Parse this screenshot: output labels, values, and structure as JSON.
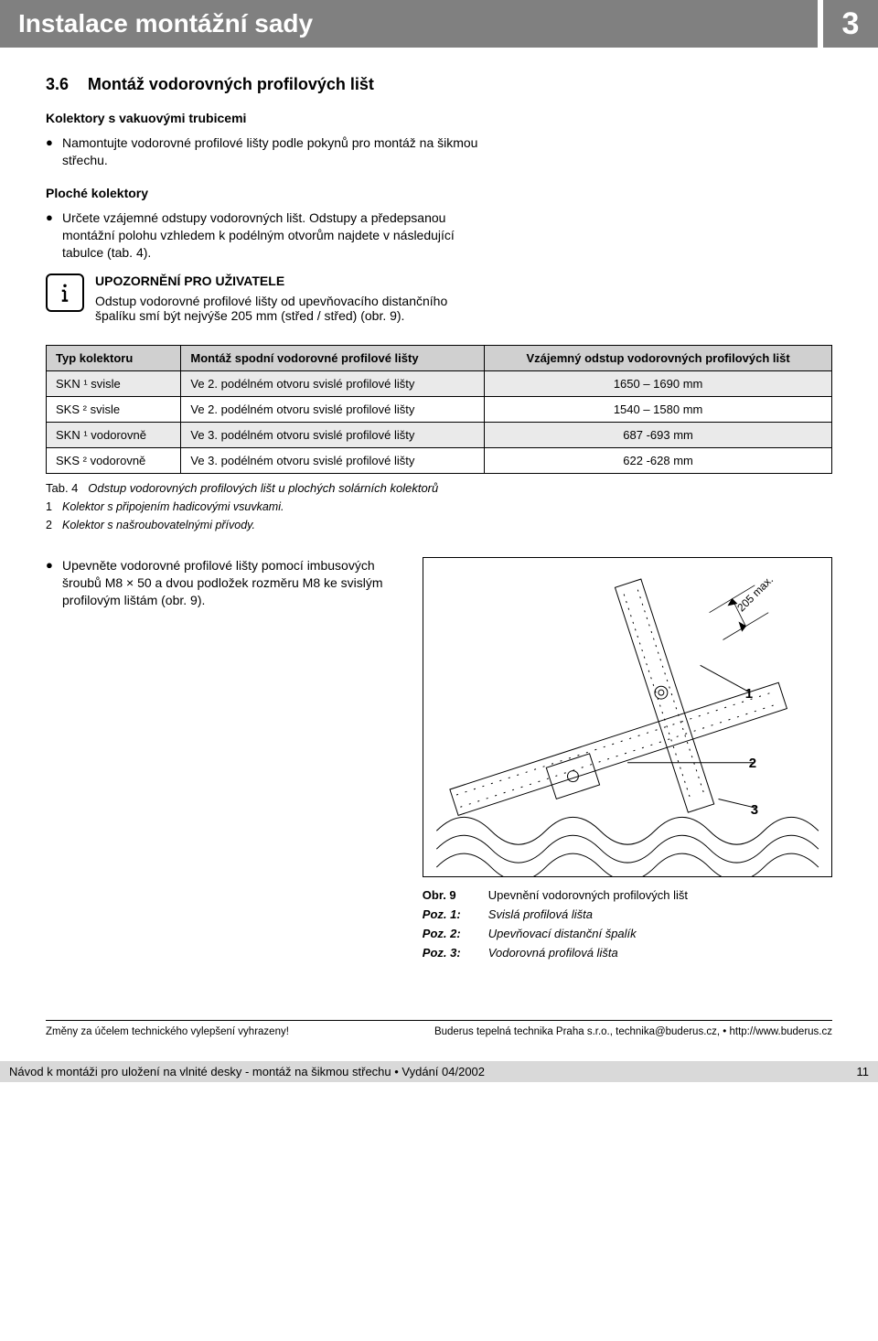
{
  "header": {
    "title": "Instalace montážní sady",
    "chapter": "3"
  },
  "section": {
    "num": "3.6",
    "title": "Montáž vodorovných profilových lišt",
    "sub1_title": "Kolektory s vakuovými trubicemi",
    "sub1_bullet": "Namontujte vodorovné profilové lišty podle pokynů pro montáž na šikmou střechu.",
    "sub2_title": "Ploché kolektory",
    "sub2_bullet": "Určete vzájemné odstupy vodorovných lišt. Odstupy a předepsanou montážní polohu vzhledem k podélným otvorům najdete v následující tabulce (tab. 4).",
    "info_heading": "UPOZORNĚNÍ PRO UŽIVATELE",
    "info_body": "Odstup vodorovné profilové lišty od upevňovacího distančního špalíku smí být nejvýše 205 mm (střed / střed) (obr. 9)."
  },
  "table": {
    "headers": [
      "Typ kolektoru",
      "Montáž spodní vodorovné profilové lišty",
      "Vzájemný odstup vodorovných profilových lišt"
    ],
    "rows": [
      [
        "SKN ¹ svisle",
        "Ve 2. podélném otvoru svislé profilové lišty",
        "1650 – 1690 mm"
      ],
      [
        "SKS ² svisle",
        "Ve 2. podélném otvoru svislé profilové lišty",
        "1540 – 1580 mm"
      ],
      [
        "SKN ¹ vodorovně",
        "Ve 3. podélném otvoru svislé profilové lišty",
        "687 -693 mm"
      ],
      [
        "SKS ² vodorovně",
        "Ve 3. podélném otvoru svislé profilové lišty",
        "622 -628 mm"
      ]
    ],
    "caption_label": "Tab. 4",
    "caption_text": "Odstup vodorovných profilových lišt u plochých solárních kolektorů",
    "footnotes": [
      {
        "n": "1",
        "t": "Kolektor s připojením hadicovými vsuvkami."
      },
      {
        "n": "2",
        "t": "Kolektor s našroubovatelnými přívody."
      }
    ]
  },
  "step": {
    "bullet": "Upevněte vodorovné profilové lišty pomocí imbusových šroubů  M8 × 50 a dvou podložek rozměru M8 ke svislým profilovým lištám (obr. 9)."
  },
  "figure": {
    "dim_label": "205 max.",
    "callouts": [
      "1",
      "2",
      "3"
    ],
    "caption_label": "Obr. 9",
    "caption_text": "Upevnění vodorovných profilových lišt",
    "legend": [
      {
        "lbl": "Poz. 1:",
        "val": "Svislá profilová lišta"
      },
      {
        "lbl": "Poz. 2:",
        "val": "Upevňovací distanční špalík"
      },
      {
        "lbl": "Poz. 3:",
        "val": "Vodorovná profilová lišta"
      }
    ]
  },
  "footer": {
    "left1": "Změny za účelem technického vylepšení vyhrazeny!",
    "right1": "Buderus tepelná technika Praha s.r.o., technika@buderus.cz, • http://www.buderus.cz",
    "left2": "Návod k montáži pro uložení na vlnité desky - montáž na šikmou střechu • Vydání 04/2002",
    "right2": "11"
  }
}
